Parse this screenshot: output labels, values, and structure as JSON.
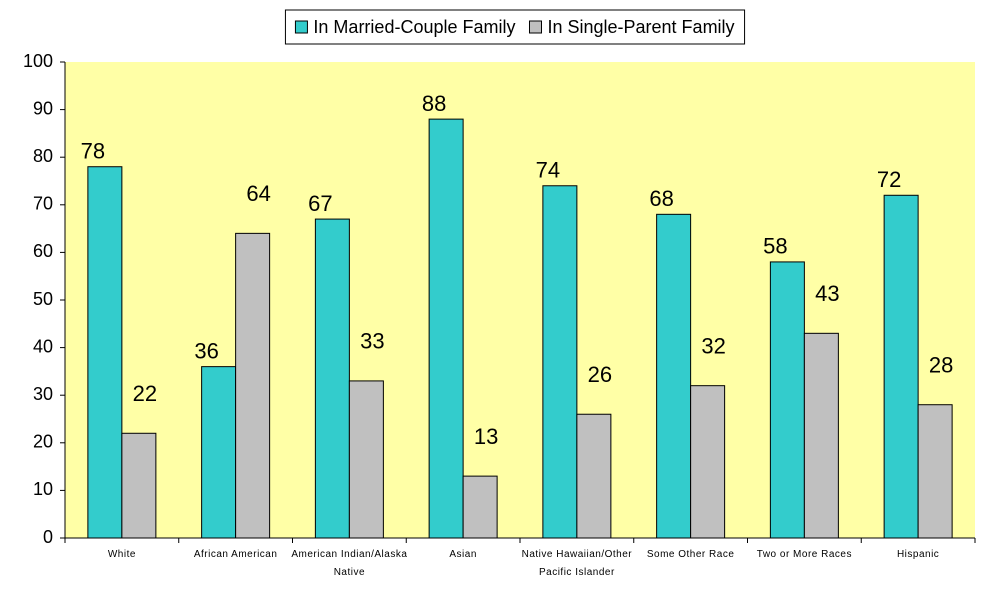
{
  "chart_data": {
    "type": "bar",
    "categories": [
      "White",
      "African American",
      "American Indian/Alaska Native",
      "Asian",
      "Native Hawaiian/Other Pacific Islander",
      "Some Other Race",
      "Two or More Races",
      "Hispanic"
    ],
    "series": [
      {
        "name": "In Married-Couple Family",
        "color": "#33cccc",
        "values": [
          78,
          36,
          67,
          88,
          74,
          68,
          58,
          72
        ]
      },
      {
        "name": "In Single-Parent Family",
        "color": "#c0c0c0",
        "values": [
          22,
          64,
          33,
          13,
          26,
          32,
          43,
          28
        ]
      }
    ],
    "ylim": [
      0,
      100
    ],
    "yticks": [
      0,
      10,
      20,
      30,
      40,
      50,
      60,
      70,
      80,
      90,
      100
    ],
    "grid": false,
    "legend": "top",
    "background": "#ffffa6"
  }
}
